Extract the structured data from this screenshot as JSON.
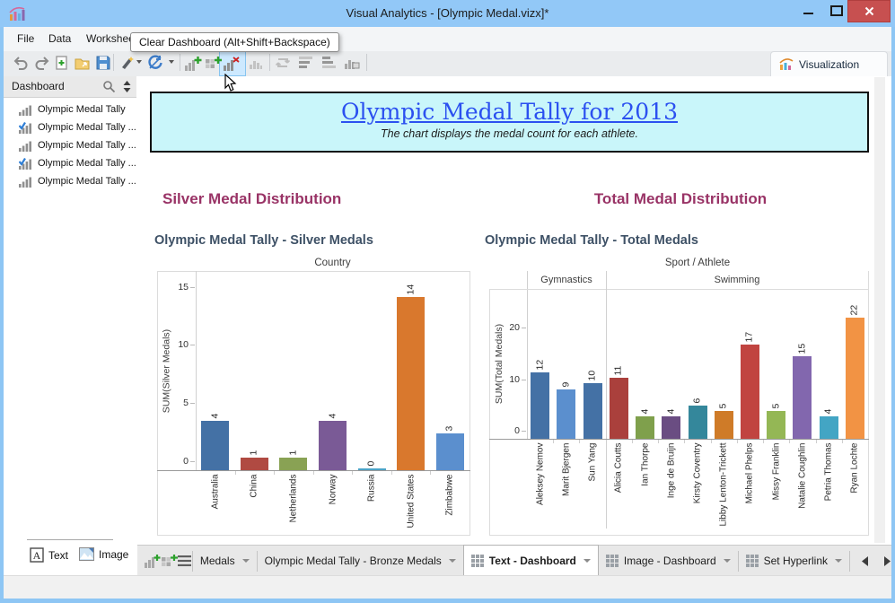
{
  "window": {
    "title": "Visual Analytics - [Olympic Medal.vizx]*"
  },
  "menu": {
    "items": [
      "File",
      "Data",
      "Worksheet"
    ]
  },
  "tooltip": {
    "text": "Clear Dashboard (Alt+Shift+Backspace)"
  },
  "toolbar": {
    "icons": [
      "undo",
      "redo",
      "new-file",
      "open-file",
      "save",
      "format-wand",
      "refresh-data",
      "add-worksheet",
      "add-dashboard",
      "clear-dashboard",
      "worksheet",
      "loop",
      "sort-ascending",
      "sort-descending",
      "fit-chart"
    ]
  },
  "visualization_tab": {
    "label": "Visualization"
  },
  "sidebar": {
    "title": "Dashboard",
    "items": [
      {
        "label": "Olympic Medal Tally",
        "checked": false
      },
      {
        "label": "Olympic Medal Tally ...",
        "checked": true
      },
      {
        "label": "Olympic Medal Tally ...",
        "checked": false
      },
      {
        "label": "Olympic Medal Tally ...",
        "checked": true
      },
      {
        "label": "Olympic Medal Tally ...",
        "checked": false
      }
    ],
    "buttons": {
      "text": "Text",
      "image": "Image"
    }
  },
  "banner": {
    "title": "Olympic Medal Tally for 2013",
    "subtitle": "The chart displays the medal count for each athlete.",
    "bg_color": "#c9f6fa",
    "title_color": "#2b50f0"
  },
  "sections": {
    "left_heading": "Silver Medal Distribution",
    "right_heading": "Total Medal Distribution",
    "heading_color": "#993366"
  },
  "chart_data": [
    {
      "type": "bar",
      "title": "Olympic Medal Tally - Silver Medals",
      "column_axis_title": "Country",
      "ylabel": "SUM(Silver Medals)",
      "yticks": [
        0,
        5,
        10,
        15
      ],
      "ylim": [
        0,
        16
      ],
      "categories": [
        "Australia",
        "China",
        "Netherlands",
        "Norway",
        "Russia",
        "United States",
        "Zimbabwe"
      ],
      "values": [
        4,
        1,
        1,
        4,
        0,
        14,
        3
      ],
      "colors": [
        "#4471a5",
        "#b04a42",
        "#89a254",
        "#7a5a96",
        "#4ba3c7",
        "#d9782d",
        "#5b8fce"
      ],
      "groups": null
    },
    {
      "type": "bar",
      "title": "Olympic Medal Tally - Total Medals",
      "column_axis_title": "Sport / Athlete",
      "ylabel": "SUM(Total Medals)",
      "yticks": [
        0,
        10,
        20
      ],
      "ylim": [
        0,
        27
      ],
      "categories": [
        "Aleksey Nemov",
        "Marit Bjergen",
        "Sun Yang",
        "Alicia Coutts",
        "Ian Thorpe",
        "Inge de Bruijn",
        "Kirsty Coventry",
        "Libby Lenton-Trickett",
        "Michael Phelps",
        "Missy Franklin",
        "Natalie Coughlin",
        "Petria Thomas",
        "Ryan Lochte"
      ],
      "values": [
        12,
        9,
        10,
        11,
        4,
        4,
        6,
        5,
        17,
        5,
        15,
        4,
        22
      ],
      "colors": [
        "#4471a5",
        "#5b8fce",
        "#4471a5",
        "#aa403c",
        "#7fa04c",
        "#6a4d82",
        "#34879b",
        "#cf7b28",
        "#c14440",
        "#94b755",
        "#8267ae",
        "#43a5c4",
        "#f29344"
      ],
      "groups": [
        {
          "label": "Gymnastics",
          "span": 3
        },
        {
          "label": "Swimming",
          "span": 10
        }
      ]
    }
  ],
  "bottom_tabs": {
    "partial_tab": "Medals",
    "tabs": [
      {
        "label": "Olympic Medal Tally - Bronze Medals",
        "active": false,
        "icon": false
      },
      {
        "label": "Text - Dashboard",
        "active": true,
        "icon": true
      },
      {
        "label": "Image - Dashboard",
        "active": false,
        "icon": true
      },
      {
        "label": "Set Hyperlink",
        "active": false,
        "icon": true
      }
    ]
  }
}
